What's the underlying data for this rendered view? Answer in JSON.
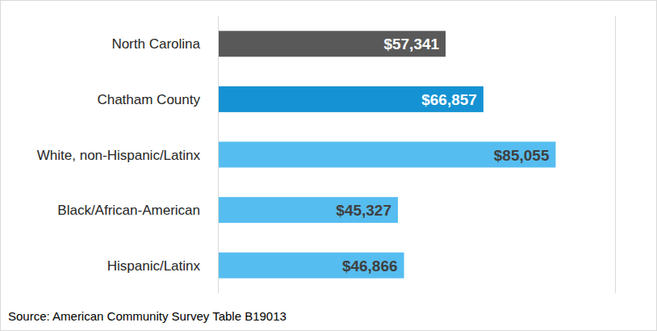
{
  "chart_data": {
    "type": "bar",
    "orientation": "horizontal",
    "categories": [
      "North Carolina",
      "Chatham County",
      "White, non-Hispanic/Latinx",
      "Black/African-American",
      "Hispanic/Latinx"
    ],
    "values": [
      57341,
      66857,
      85055,
      45327,
      46866
    ],
    "value_labels": [
      "$57,341",
      "$66,857",
      "$85,055",
      "$45,327",
      "$46,866"
    ],
    "colors": [
      "#595959",
      "#1592d3",
      "#56bdf0",
      "#56bdf0",
      "#56bdf0"
    ],
    "xlim": [
      0,
      100000
    ],
    "xticks": [
      0,
      100000
    ],
    "grid": true,
    "tick_labels": false,
    "data_labels": true,
    "annotations": [
      "Source: American Community Survey Table B19013"
    ]
  }
}
